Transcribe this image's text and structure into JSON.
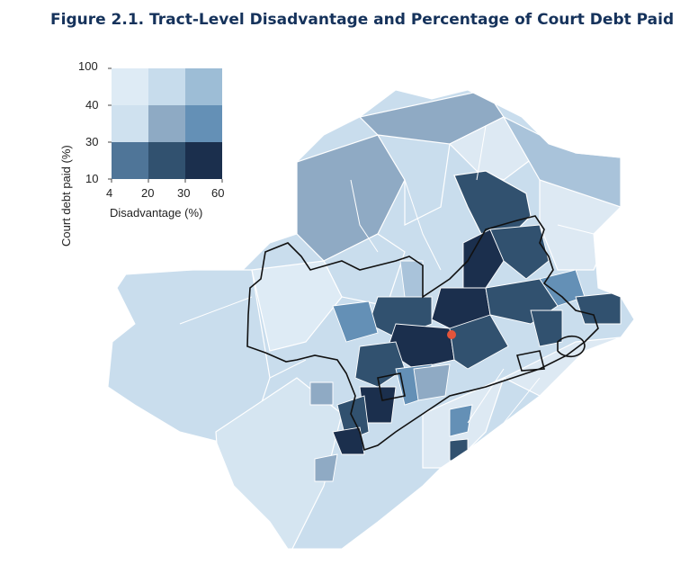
{
  "title": "Figure 2.1. Tract-Level Disadvantage and Percentage of Court Debt Paid",
  "legend": {
    "y_label": "Court debt paid (%)",
    "x_label": "Disadvantage (%)",
    "y_ticks": [
      "100",
      "40",
      "30",
      "10"
    ],
    "x_ticks": [
      "4",
      "20",
      "30",
      "60"
    ],
    "grid_colors": [
      [
        "#deebf5",
        "#c7dcec",
        "#9dbdd6"
      ],
      [
        "#cfe1ef",
        "#8eaac4",
        "#6490b6"
      ],
      [
        "#4f7598",
        "#31516f",
        "#1b2f4d"
      ]
    ]
  },
  "colors": {
    "title": "#15325b",
    "tract_border": "#ffffff",
    "city_boundary": "#111111",
    "center_marker": "#e4543a"
  }
}
